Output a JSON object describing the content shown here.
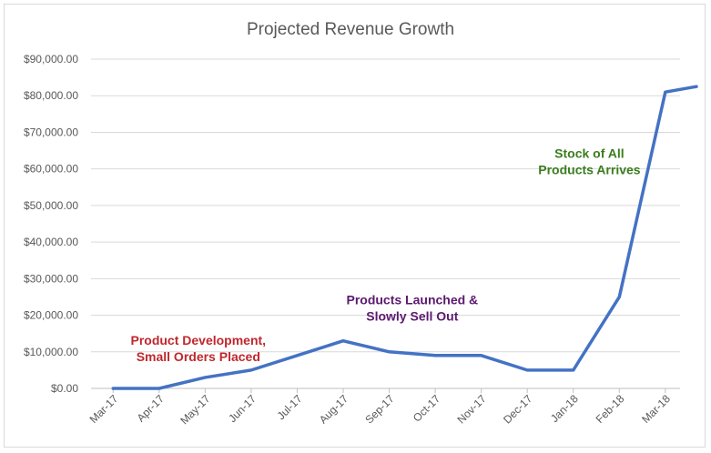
{
  "chart_data": {
    "type": "line",
    "title": "Projected Revenue Growth",
    "xlabel": "",
    "ylabel": "",
    "categories": [
      "Mar-17",
      "Apr-17",
      "May-17",
      "Jun-17",
      "Jul-17",
      "Aug-17",
      "Sep-17",
      "Oct-17",
      "Nov-17",
      "Dec-17",
      "Jan-18",
      "Feb-18",
      "Mar-18"
    ],
    "series": [
      {
        "values": [
          0,
          0,
          3000,
          5000,
          9000,
          13000,
          10000,
          9000,
          9000,
          5000,
          5000,
          25000,
          81000
        ],
        "end_value": 82500,
        "color": "#4472c4"
      }
    ],
    "ylim": [
      0,
      90000
    ],
    "yticks": [
      "$0.00",
      "$10,000.00",
      "$20,000.00",
      "$30,000.00",
      "$40,000.00",
      "$50,000.00",
      "$60,000.00",
      "$70,000.00",
      "$80,000.00",
      "$90,000.00"
    ],
    "grid": true,
    "annotations": [
      {
        "lines": [
          "Product Development,",
          "Small Orders Placed"
        ],
        "color": "#c0272d",
        "x_index": 1.85,
        "y_value": 10000
      },
      {
        "lines": [
          "Products Launched &",
          "Slowly Sell Out"
        ],
        "color": "#5b1a6e",
        "x_index": 6.5,
        "y_value": 21000
      },
      {
        "lines": [
          "Stock of All",
          "Products Arrives"
        ],
        "color": "#3a7d1e",
        "x_index": 10.35,
        "y_value": 61000
      }
    ]
  }
}
